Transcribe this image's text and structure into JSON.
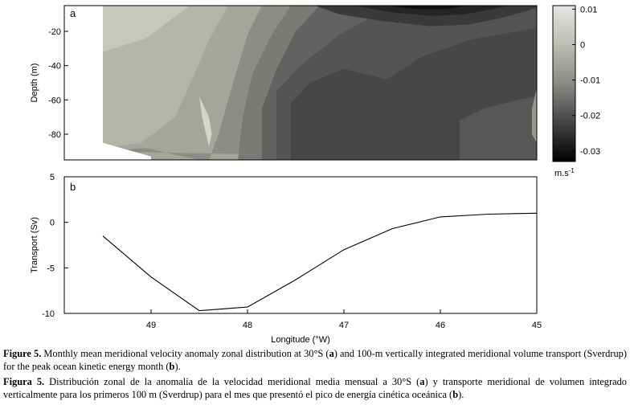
{
  "chart_data": [
    {
      "type": "heatmap",
      "panel_label": "a",
      "ylabel": "Depth (m)",
      "xlim": [
        49.9,
        45
      ],
      "ylim": [
        -95,
        -5
      ],
      "y_ticks": [
        "-20",
        "-40",
        "-60",
        "-80"
      ],
      "y_tick_values": [
        -20,
        -40,
        -60,
        -80
      ],
      "colorbar": {
        "range": [
          -0.033,
          0.011
        ],
        "ticks": [
          "0.01",
          "0",
          "-0.01",
          "-0.02",
          "-0.03"
        ],
        "tick_values": [
          0.01,
          0,
          -0.01,
          -0.02,
          -0.03
        ],
        "unit": "m.s",
        "unit_exp": "-1",
        "low_color": "#000000",
        "high_color": "#e6e6e2"
      },
      "contour_bands": [
        {
          "value": 0.004,
          "color": "#c8c7bd",
          "polygon": [
            [
              49.5,
              -5
            ],
            [
              45,
              -5
            ],
            [
              45,
              -95
            ],
            [
              49.5,
              -95
            ]
          ]
        },
        {
          "value": -0.002,
          "color": "#b5b4ab",
          "polygon": [
            [
              49.5,
              -32
            ],
            [
              49.05,
              -24
            ],
            [
              48.6,
              -5
            ],
            [
              45,
              -5
            ],
            [
              45,
              -95
            ],
            [
              49.5,
              -95
            ]
          ]
        },
        {
          "value": -0.006,
          "color": "#a6a59d",
          "polygon": [
            [
              49.5,
              -88
            ],
            [
              49.1,
              -85
            ],
            [
              48.75,
              -70
            ],
            [
              48.55,
              -45
            ],
            [
              48.4,
              -25
            ],
            [
              48.2,
              -5
            ],
            [
              45,
              -5
            ],
            [
              45,
              -95
            ],
            [
              49.5,
              -95
            ]
          ]
        },
        {
          "value": -0.009,
          "color": "#8d8c86",
          "polygon": [
            [
              49.5,
              -90
            ],
            [
              49.05,
              -88
            ],
            [
              48.75,
              -92
            ],
            [
              48.5,
              -95
            ],
            [
              48.4,
              -95
            ],
            [
              48.3,
              -80
            ],
            [
              48.15,
              -50
            ],
            [
              48.0,
              -22
            ],
            [
              47.85,
              -5
            ],
            [
              45,
              -5
            ],
            [
              45,
              -95
            ]
          ]
        },
        {
          "value": -0.012,
          "color": "#7b7a75",
          "polygon": [
            [
              48.1,
              -95
            ],
            [
              48.05,
              -70
            ],
            [
              47.95,
              -45
            ],
            [
              47.75,
              -22
            ],
            [
              47.55,
              -5
            ],
            [
              45,
              -5
            ],
            [
              45,
              -95
            ]
          ]
        },
        {
          "value": -0.015,
          "color": "#636260",
          "polygon": [
            [
              47.85,
              -95
            ],
            [
              47.85,
              -65
            ],
            [
              47.7,
              -42
            ],
            [
              47.5,
              -20
            ],
            [
              47.25,
              -5
            ],
            [
              45,
              -5
            ],
            [
              45,
              -95
            ]
          ]
        },
        {
          "value": -0.018,
          "color": "#555452",
          "polygon": [
            [
              47.7,
              -95
            ],
            [
              47.7,
              -55
            ],
            [
              47.45,
              -40
            ],
            [
              47.05,
              -22
            ],
            [
              46.5,
              -5
            ],
            [
              45,
              -5
            ],
            [
              45,
              -95
            ]
          ]
        },
        {
          "value": -0.021,
          "color": "#474746",
          "polygon": [
            [
              47.55,
              -95
            ],
            [
              47.55,
              -62
            ],
            [
              47.35,
              -50
            ],
            [
              47.0,
              -42
            ],
            [
              46.55,
              -48
            ],
            [
              46.2,
              -35
            ],
            [
              45.7,
              -25
            ],
            [
              45,
              -18
            ],
            [
              45,
              -95
            ]
          ]
        },
        {
          "value": -0.022,
          "color": "#575756",
          "polygon": [
            [
              45.8,
              -95
            ],
            [
              45.8,
              -72
            ],
            [
              45.55,
              -65
            ],
            [
              45.2,
              -60
            ],
            [
              45,
              -58
            ],
            [
              45,
              -95
            ]
          ]
        },
        {
          "value": -0.024,
          "color": "#3a3a3a",
          "polygon": [
            [
              47.3,
              -5
            ],
            [
              47.05,
              -10
            ],
            [
              46.6,
              -14
            ],
            [
              46.1,
              -17
            ],
            [
              45.7,
              -16
            ],
            [
              45.35,
              -12
            ],
            [
              45.1,
              -8
            ],
            [
              45,
              -6
            ],
            [
              45,
              -5
            ]
          ]
        },
        {
          "value": -0.027,
          "color": "#252525",
          "polygon": [
            [
              46.9,
              -5
            ],
            [
              46.5,
              -9
            ],
            [
              46.1,
              -11
            ],
            [
              45.75,
              -10
            ],
            [
              45.45,
              -7
            ],
            [
              45.3,
              -5
            ]
          ]
        },
        {
          "value": -0.03,
          "color": "#101010",
          "polygon": [
            [
              46.55,
              -5
            ],
            [
              46.25,
              -7
            ],
            [
              45.95,
              -7
            ],
            [
              45.7,
              -5
            ]
          ]
        },
        {
          "value": -0.008,
          "color": "#999892",
          "polygon": [
            [
              45.0,
              -53
            ],
            [
              45.05,
              -65
            ],
            [
              45.05,
              -80
            ],
            [
              45.0,
              -85
            ]
          ]
        },
        {
          "value": 0.006,
          "color": "#d6d5cc",
          "polygon": [
            [
              48.5,
              -58
            ],
            [
              48.47,
              -70
            ],
            [
              48.43,
              -80
            ],
            [
              48.4,
              -87
            ],
            [
              48.37,
              -80
            ],
            [
              48.4,
              -70
            ]
          ]
        }
      ],
      "no_data_mask": [
        [
          49.9,
          -5
        ],
        [
          49.5,
          -5
        ],
        [
          49.5,
          -85
        ],
        [
          49.0,
          -93
        ],
        [
          49.0,
          -95
        ],
        [
          49.9,
          -95
        ]
      ]
    },
    {
      "type": "line",
      "panel_label": "b",
      "ylabel": "Transport (Sv)",
      "xlabel": "Longitude (°W)",
      "xlim": [
        49.9,
        45
      ],
      "ylim": [
        -10,
        5
      ],
      "x_ticks": [
        "49",
        "48",
        "47",
        "46",
        "45"
      ],
      "x_tick_values": [
        49,
        48,
        47,
        46,
        45
      ],
      "y_ticks": [
        "5",
        "0",
        "-5",
        "-10"
      ],
      "y_tick_values": [
        5,
        0,
        -5,
        -10
      ],
      "x": [
        49.5,
        49.0,
        48.5,
        48.0,
        47.5,
        47.0,
        46.5,
        46.0,
        45.5,
        45.0
      ],
      "values": [
        -1.5,
        -6.0,
        -9.7,
        -9.3,
        -6.3,
        -3.0,
        -0.7,
        0.6,
        0.9,
        1.0
      ]
    }
  ],
  "captions": {
    "en": {
      "label": "Figure 5.",
      "part1": " Monthly mean meridional velocity anomaly zonal distribution at 30°S (",
      "a": "a",
      "part2": ") and 100-m vertically integrated meridional volume transport (Sverdrup) for the peak ocean kinetic energy month (",
      "b": "b",
      "part3": ")."
    },
    "es": {
      "label": "Figura 5.",
      "part1": " Distribución zonal de la anomalía de la velocidad meridional media mensual a 30°S (",
      "a": "a",
      "part2": ") y transporte meridional de volumen integrado verticalmente para los primeros 100 m (Sverdrup) para el mes que presentó el pico de energía cinética oceánica (",
      "b": "b",
      "part3": ")."
    }
  }
}
